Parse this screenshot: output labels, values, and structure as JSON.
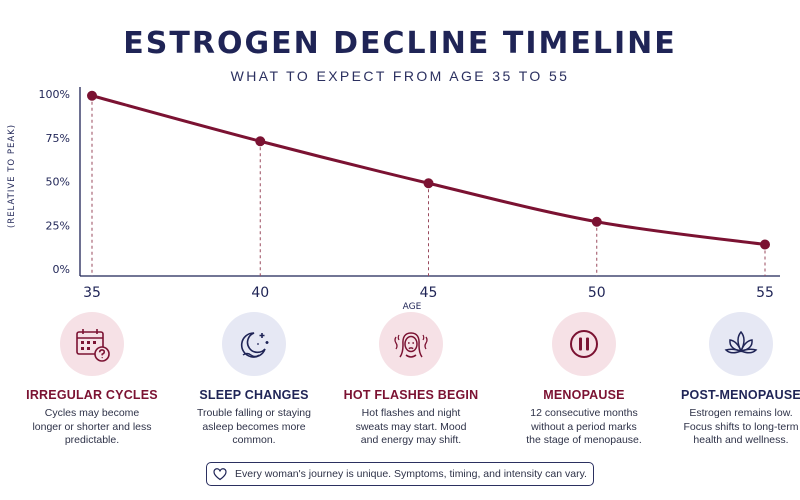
{
  "title": "ESTROGEN DECLINE TIMELINE",
  "subtitle": "WHAT TO EXPECT FROM AGE 35 TO 55",
  "chart_data": {
    "type": "line",
    "title": "ESTROGEN DECLINE TIMELINE",
    "subtitle": "WHAT TO EXPECT FROM AGE 35 TO 55",
    "xlabel": "AGE",
    "ylabel": "(RELATIVE TO PEAK)",
    "x_ticks": [
      "35",
      "40",
      "45",
      "50",
      "55"
    ],
    "y_ticks": [
      "0%",
      "25%",
      "50%",
      "75%",
      "100%"
    ],
    "xlim": [
      35,
      55
    ],
    "ylim": [
      0,
      100
    ],
    "series": [
      {
        "points": [
          {
            "x": 35,
            "y": 99
          },
          {
            "x": 40,
            "y": 73
          },
          {
            "x": 45,
            "y": 49
          },
          {
            "x": 50,
            "y": 27
          },
          {
            "x": 55,
            "y": 14
          }
        ]
      }
    ],
    "grid": false,
    "line_color": "#7b1232",
    "axis_color": "#1f2456"
  },
  "stages": [
    {
      "title": "IRREGULAR CYCLES",
      "desc": "Cycles may become longer or shorter and less predictable.",
      "icon": "calendar-question-icon",
      "tone": "pink"
    },
    {
      "title": "SLEEP CHANGES",
      "desc": "Trouble falling or staying asleep becomes more common.",
      "icon": "moon-stars-icon",
      "tone": "lav"
    },
    {
      "title": "HOT FLASHES BEGIN",
      "desc": "Hot flashes and night sweats may start. Mood and energy may shift.",
      "icon": "woman-heat-icon",
      "tone": "pink"
    },
    {
      "title": "MENOPAUSE",
      "desc": "12 consecutive months without a period marks the stage of menopause.",
      "icon": "pause-icon",
      "tone": "pink"
    },
    {
      "title": "POST-MENOPAUSE",
      "desc": "Estrogen remains low. Focus shifts to long-term health and wellness.",
      "icon": "lotus-icon",
      "tone": "lav"
    }
  ],
  "note": "Every woman's journey is unique. Symptoms, timing, and intensity can vary.",
  "colors": {
    "navy": "#1f2456",
    "maroon": "#7b1232",
    "pink_bg": "#f6e1e6",
    "lavender_bg": "#e6e8f4"
  }
}
